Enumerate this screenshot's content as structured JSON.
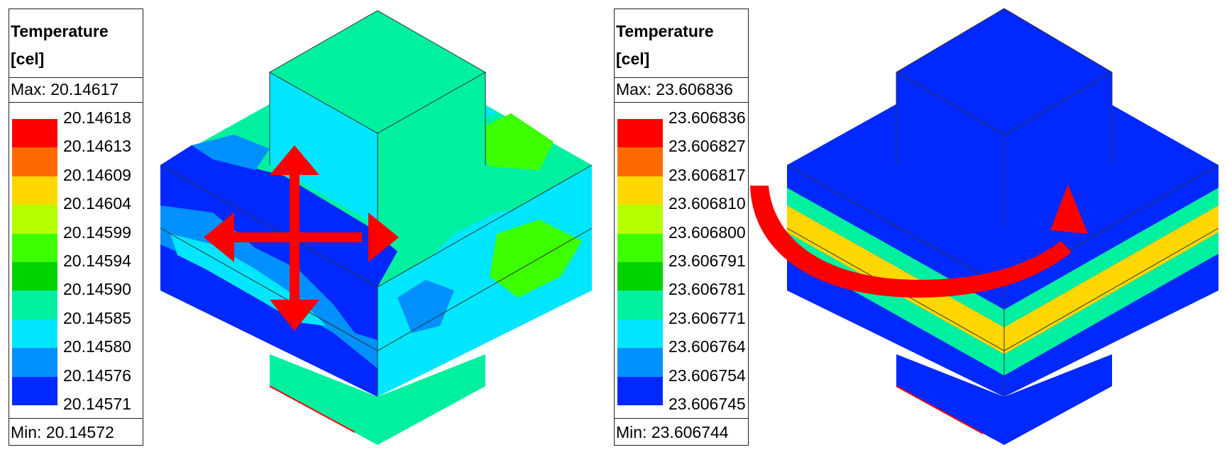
{
  "panels": [
    {
      "legend": {
        "title_line1": "Temperature",
        "title_line2": "[cel]",
        "max_label": "Max: 20.14617",
        "min_label": "Min: 20.14572",
        "ticks": [
          "20.14618",
          "20.14613",
          "20.14609",
          "20.14604",
          "20.14599",
          "20.14594",
          "20.14590",
          "20.14585",
          "20.14580",
          "20.14576",
          "20.14571"
        ]
      },
      "arrow": "four-way-arrow-icon"
    },
    {
      "legend": {
        "title_line1": "Temperature",
        "title_line2": "[cel]",
        "max_label": "Max: 23.606836",
        "min_label": "Min: 23.606744",
        "ticks": [
          "23.606836",
          "23.606827",
          "23.606817",
          "23.606810",
          "23.606800",
          "23.606791",
          "23.606781",
          "23.606771",
          "23.606764",
          "23.606754",
          "23.606745"
        ]
      },
      "arrow": "curved-rotation-arrow-icon"
    }
  ],
  "colors": {
    "scale": [
      "#ff0000",
      "#ff6a00",
      "#ffd700",
      "#b4ff00",
      "#3cff00",
      "#00d200",
      "#00f0a0",
      "#00e6ff",
      "#0090ff",
      "#0028ff"
    ],
    "arrow": "#ff0000"
  }
}
